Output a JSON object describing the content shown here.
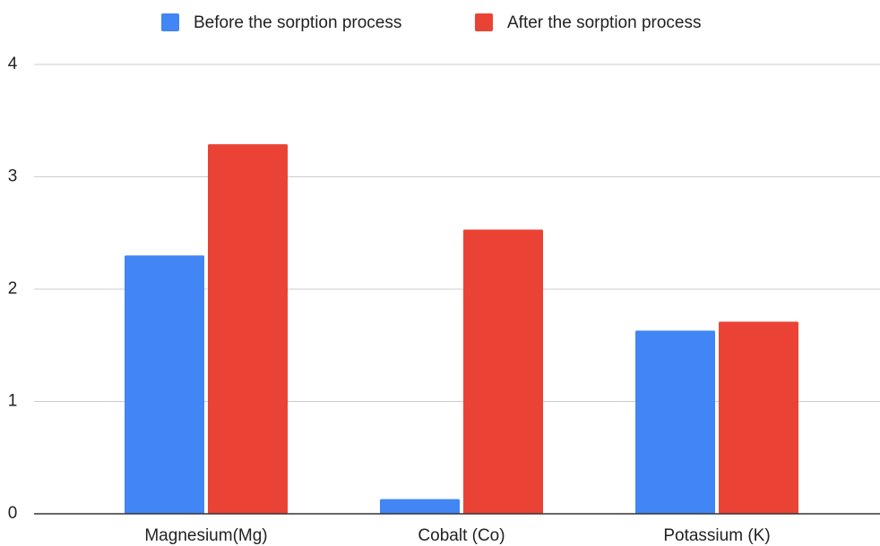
{
  "chart_data": {
    "type": "bar",
    "categories": [
      "Magnesium(Mg)",
      "Cobalt (Co)",
      "Potassium (K)"
    ],
    "series": [
      {
        "name": "Before the sorption process",
        "color": "#4285f4",
        "values": [
          2.3,
          0.13,
          1.63
        ]
      },
      {
        "name": "After the sorption process",
        "color": "#ea4335",
        "values": [
          3.29,
          2.53,
          1.71
        ]
      }
    ],
    "ylim": [
      0,
      4
    ],
    "yticks": [
      0,
      1,
      2,
      3,
      4
    ],
    "grid": true,
    "legend": "top"
  }
}
